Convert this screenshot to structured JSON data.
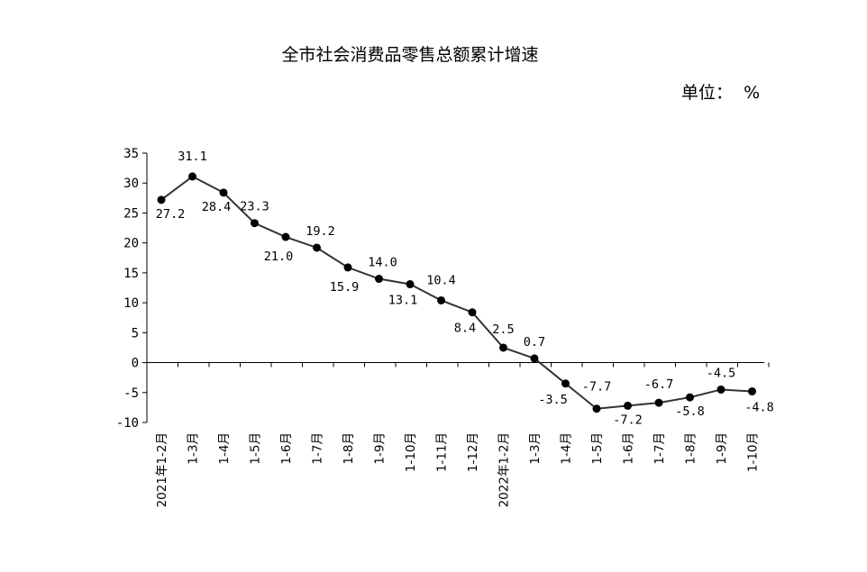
{
  "chart_data": {
    "type": "line",
    "title": "全市社会消费品零售总额累计增速",
    "unit_label": "单位：  %",
    "categories": [
      "2021年1-2月",
      "1-3月",
      "1-4月",
      "1-5月",
      "1-6月",
      "1-7月",
      "1-8月",
      "1-9月",
      "1-10月",
      "1-11月",
      "1-12月",
      "2022年1-2月",
      "1-3月",
      "1-4月",
      "1-5月",
      "1-6月",
      "1-7月",
      "1-8月",
      "1-9月",
      "1-10月"
    ],
    "series": [
      {
        "values": [
          27.2,
          31.1,
          28.4,
          23.3,
          21.0,
          19.2,
          15.9,
          14.0,
          13.1,
          10.4,
          8.4,
          2.5,
          0.7,
          -3.5,
          -7.7,
          -7.2,
          -6.7,
          -5.8,
          -4.5,
          -4.8
        ],
        "labels": [
          "27.2",
          "31.1",
          "28.4",
          "23.3",
          "21.0",
          "19.2",
          "15.9",
          "14.0",
          "13.1",
          "10.4",
          "8.4",
          "2.5",
          "0.7",
          "-3.5",
          "-7.7",
          "-7.2",
          "-6.7",
          "-5.8",
          "-4.5",
          "-4.8"
        ]
      }
    ],
    "ylim": [
      -10,
      35
    ],
    "yticks": [
      "-10",
      "-5",
      "0",
      "5",
      "10",
      "15",
      "20",
      "25",
      "30",
      "35"
    ],
    "xlabel": "",
    "ylabel": "",
    "grid": false,
    "legend": "none",
    "colors": {
      "line": "#333333",
      "marker": "#000000",
      "axis": "#000000"
    }
  }
}
